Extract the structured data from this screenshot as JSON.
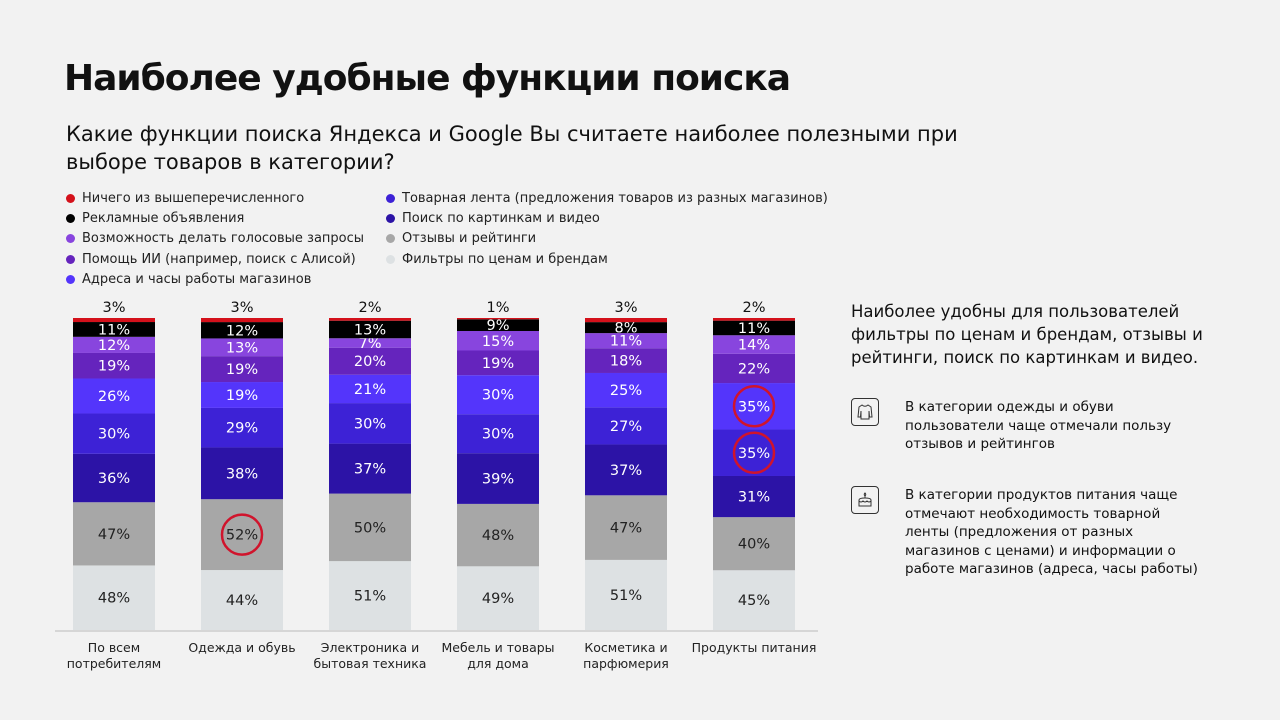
{
  "title": "Наиболее удобные функции поиска",
  "subtitle": "Какие функции поиска Яндекса и Google Вы считаете наиболее полезными при выборе товаров в категории?",
  "chart_data": {
    "type": "bar",
    "stacked": true,
    "title": "",
    "categories": [
      "По всем потребителям",
      "Одежда и обувь",
      "Электроника и бытовая техника",
      "Мебель и товары для дома",
      "Косметика и парфюмерия",
      "Продукты питания"
    ],
    "category_lines": [
      [
        "По всем",
        "потребителям"
      ],
      [
        "Одежда и обувь"
      ],
      [
        "Электроника и",
        "бытовая техника"
      ],
      [
        "Мебель и товары",
        "для дома"
      ],
      [
        "Косметика и",
        "парфюмерия"
      ],
      [
        "Продукты питания"
      ]
    ],
    "unit": "%",
    "series": [
      {
        "name": "Фильтры по ценам и брендам",
        "color": "#dde1e3",
        "values": [
          48,
          44,
          51,
          49,
          51,
          45
        ]
      },
      {
        "name": "Отзывы и рейтинги",
        "color": "#a7a7a7",
        "values": [
          47,
          52,
          50,
          48,
          47,
          40
        ]
      },
      {
        "name": "Поиск по картинкам и видео",
        "color": "#2c13a6",
        "values": [
          36,
          38,
          37,
          39,
          37,
          31
        ]
      },
      {
        "name": "Товарная лента (предложения товаров из разных магазинов)",
        "color": "#3d22d6",
        "values": [
          30,
          29,
          30,
          30,
          27,
          35
        ]
      },
      {
        "name": "Адреса и часы работы магазинов",
        "color": "#5435fb",
        "values": [
          26,
          19,
          21,
          30,
          25,
          35
        ]
      },
      {
        "name": "Помощь ИИ (например, поиск с Алисой)",
        "color": "#6524bd",
        "values": [
          19,
          19,
          20,
          19,
          18,
          22
        ]
      },
      {
        "name": "Возможность делать голосовые запросы",
        "color": "#8845de",
        "values": [
          12,
          13,
          7,
          15,
          11,
          14
        ]
      },
      {
        "name": "Рекламные объявления",
        "color": "#000000",
        "values": [
          11,
          12,
          13,
          9,
          8,
          11
        ]
      },
      {
        "name": "Ничего из вышеперечисленного",
        "color": "#d4111b",
        "values": [
          3,
          3,
          2,
          1,
          3,
          2
        ]
      }
    ],
    "highlighted": [
      {
        "series": "Отзывы и рейтинги",
        "category": "Одежда и обувь"
      },
      {
        "series": "Адреса и часы работы магазинов",
        "category": "Продукты питания"
      },
      {
        "series": "Товарная лента (предложения товаров из разных магазинов)",
        "category": "Продукты питания"
      }
    ],
    "highlight_color": "#d0142c",
    "legend": {
      "placement": "top-left",
      "col1": [
        "Ничего из вышеперечисленного",
        "Рекламные объявления",
        "Возможность делать голосовые запросы",
        "Помощь ИИ (например, поиск с Алисой)",
        "Адреса и часы работы магазинов"
      ],
      "col2": [
        "Товарная лента (предложения товаров из разных магазинов)",
        "Поиск по картинкам и видео",
        "Отзывы и рейтинги",
        "Фильтры по ценам и брендам"
      ]
    },
    "grid": false
  },
  "summary": "Наиболее удобны для пользователей фильтры по ценам и брендам, отзывы и рейтинги, поиск по картинкам и видео.",
  "notes": [
    {
      "icon": "shirt-icon",
      "text": "В категории одежды и обуви пользователи чаще отмечали пользу отзывов и рейтингов"
    },
    {
      "icon": "cake-icon",
      "text": "В категории продуктов питания чаще отмечают необходимость товарной ленты (предложения от разных магазинов с ценами) и информации о работе магазинов (адреса, часы работы)"
    }
  ]
}
